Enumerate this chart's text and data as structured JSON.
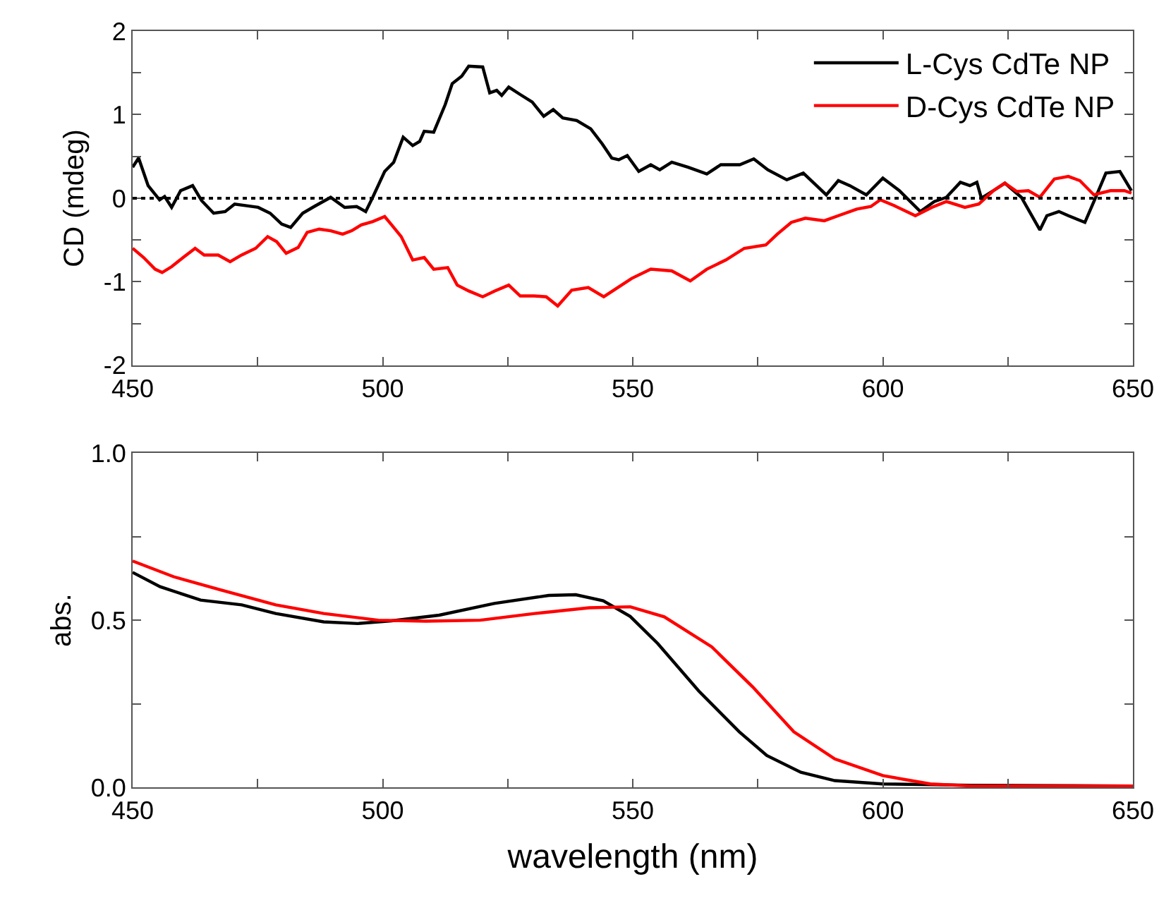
{
  "chart_data": [
    {
      "type": "line",
      "ylabel": "CD (mdeg)",
      "xlim": [
        450,
        650
      ],
      "ylim": [
        -2,
        2
      ],
      "xticks": [
        450,
        {
          "value": 475,
          "label": null
        },
        500,
        {
          "value": 525,
          "label": null
        },
        550,
        {
          "value": 575,
          "label": null
        },
        600,
        {
          "value": 625,
          "label": null
        },
        650
      ],
      "yticks": [
        -2,
        {
          "value": -1.5,
          "label": null
        },
        -1,
        {
          "value": -0.5,
          "label": null
        },
        0,
        {
          "value": 0.5,
          "label": null
        },
        1,
        {
          "value": 1.5,
          "label": null
        },
        2
      ],
      "legend": "top right",
      "marker": "none",
      "line_style": "solid",
      "ref_lines": [
        {
          "axis": "y",
          "value": 0,
          "color": "#000000",
          "line_style": "dotted"
        }
      ],
      "series": [
        {
          "name": "L-Cys CdTe NP",
          "color": "#000000",
          "x": [
            450,
            451.2,
            453.1,
            455.4,
            456.4,
            457.8,
            459.6,
            462,
            463.8,
            466.2,
            468.5,
            470.4,
            472.8,
            475.1,
            477.5,
            479.8,
            481.6,
            484,
            486.3,
            489.6,
            492.4,
            494.8,
            496.6,
            498,
            500.4,
            502.2,
            504.1,
            506,
            507.4,
            508.3,
            510.2,
            512.5,
            513.9,
            515.8,
            517.2,
            520,
            521.4,
            522.8,
            523.8,
            525.2,
            527.5,
            529.9,
            532.2,
            534.1,
            536,
            538.8,
            541.6,
            543.9,
            545.8,
            547.2,
            548.9,
            551.2,
            553.6,
            555.4,
            557.8,
            561.1,
            564.8,
            567.6,
            571.4,
            574.2,
            577,
            580.8,
            584.1,
            588.7,
            591.1,
            593.4,
            596.7,
            600,
            603.3,
            607.5,
            610.3,
            612.7,
            615.5,
            617.4,
            618.8,
            619.7,
            622.1,
            624.4,
            627.7,
            631.4,
            632.8,
            635.2,
            637.1,
            640.4,
            642.2,
            644.6,
            647.4,
            649.7
          ],
          "values": [
            0.37,
            0.48,
            0.15,
            -0.02,
            0.02,
            -0.11,
            0.09,
            0.15,
            -0.03,
            -0.18,
            -0.16,
            -0.07,
            -0.09,
            -0.11,
            -0.18,
            -0.31,
            -0.35,
            -0.18,
            -0.1,
            0.01,
            -0.11,
            -0.1,
            -0.16,
            0.01,
            0.32,
            0.43,
            0.73,
            0.63,
            0.68,
            0.8,
            0.79,
            1.12,
            1.37,
            1.46,
            1.58,
            1.57,
            1.26,
            1.29,
            1.23,
            1.33,
            1.24,
            1.15,
            0.98,
            1.06,
            0.96,
            0.93,
            0.83,
            0.65,
            0.48,
            0.46,
            0.51,
            0.32,
            0.4,
            0.34,
            0.43,
            0.37,
            0.29,
            0.4,
            0.4,
            0.47,
            0.34,
            0.22,
            0.3,
            0.04,
            0.21,
            0.15,
            0.04,
            0.24,
            0.09,
            -0.16,
            -0.04,
            0.01,
            0.19,
            0.15,
            0.19,
            0,
            0.09,
            0.18,
            0.01,
            -0.38,
            -0.21,
            -0.16,
            -0.21,
            -0.29,
            -0.04,
            0.3,
            0.32,
            0.09
          ]
        },
        {
          "name": "D-Cys CdTe NP",
          "color": "#ff0000",
          "x": [
            450,
            452.2,
            454.5,
            455.9,
            457.8,
            460.1,
            462.5,
            464.3,
            467.1,
            469.5,
            471.8,
            474.6,
            477,
            478.8,
            480.7,
            483.1,
            484.9,
            487.3,
            489.6,
            492,
            493.8,
            495.7,
            498,
            500.4,
            501.8,
            503.7,
            506,
            508.3,
            510.2,
            513,
            514.9,
            517.2,
            520,
            522.4,
            525.2,
            527.5,
            530.3,
            532.7,
            535,
            537.8,
            541.1,
            544.2,
            547,
            549.8,
            553.6,
            557.8,
            561.5,
            564.8,
            568.6,
            572.3,
            576.6,
            578.9,
            581.7,
            584.5,
            588.3,
            591.1,
            594.8,
            597.6,
            599.5,
            602.3,
            606.5,
            609.8,
            612.7,
            616.4,
            619.2,
            622.1,
            624.4,
            626.8,
            629.1,
            631.4,
            634.3,
            637.1,
            639.4,
            642.2,
            645.5,
            648.3,
            649.7
          ],
          "values": [
            -0.6,
            -0.71,
            -0.85,
            -0.89,
            -0.82,
            -0.71,
            -0.6,
            -0.68,
            -0.68,
            -0.76,
            -0.68,
            -0.6,
            -0.46,
            -0.52,
            -0.66,
            -0.59,
            -0.41,
            -0.37,
            -0.39,
            -0.43,
            -0.39,
            -0.32,
            -0.28,
            -0.22,
            -0.32,
            -0.46,
            -0.74,
            -0.71,
            -0.85,
            -0.83,
            -1.04,
            -1.11,
            -1.18,
            -1.11,
            -1.04,
            -1.17,
            -1.17,
            -1.18,
            -1.29,
            -1.1,
            -1.07,
            -1.18,
            -1.07,
            -0.96,
            -0.85,
            -0.87,
            -0.99,
            -0.85,
            -0.74,
            -0.6,
            -0.56,
            -0.43,
            -0.29,
            -0.24,
            -0.27,
            -0.21,
            -0.13,
            -0.1,
            -0.02,
            -0.09,
            -0.21,
            -0.11,
            -0.04,
            -0.11,
            -0.07,
            0.09,
            0.18,
            0.08,
            0.09,
            0.01,
            0.23,
            0.26,
            0.21,
            0.04,
            0.09,
            0.09,
            0.06
          ]
        }
      ]
    },
    {
      "type": "line",
      "xlabel": "wavelength (nm)",
      "ylabel": "abs.",
      "xlim": [
        450,
        650
      ],
      "ylim": [
        0,
        1
      ],
      "xticks": [
        450,
        {
          "value": 475,
          "label": null
        },
        500,
        {
          "value": 525,
          "label": null
        },
        550,
        {
          "value": 575,
          "label": null
        },
        600,
        {
          "value": 625,
          "label": null
        },
        650
      ],
      "yticks": [
        {
          "value": 0,
          "label": "0.0"
        },
        {
          "value": 0.25,
          "label": null
        },
        0.5,
        {
          "value": 0.75,
          "label": null
        },
        {
          "value": 1,
          "label": "1.0"
        }
      ],
      "legend": false,
      "marker": "none",
      "line_style": "solid",
      "series": [
        {
          "color": "#000000",
          "x": [
            450,
            455.5,
            463.6,
            471.8,
            478.6,
            488.2,
            495,
            501.8,
            511.3,
            522.3,
            533.2,
            538.6,
            544.1,
            549.5,
            555,
            563.2,
            571.3,
            576.8,
            583.6,
            590.4,
            600,
            617.7,
            650
          ],
          "values": [
            0.643,
            0.6,
            0.56,
            0.546,
            0.52,
            0.495,
            0.49,
            0.498,
            0.515,
            0.55,
            0.574,
            0.576,
            0.558,
            0.511,
            0.43,
            0.288,
            0.166,
            0.095,
            0.045,
            0.02,
            0.01,
            0.006,
            0.004
          ]
        },
        {
          "color": "#ff0000",
          "x": [
            450,
            458.2,
            467.7,
            478.6,
            488.2,
            499.1,
            508.6,
            519.5,
            530.4,
            541.3,
            549.5,
            556.3,
            565.8,
            574,
            582.2,
            590.4,
            600,
            609.5,
            617.7,
            650
          ],
          "values": [
            0.677,
            0.63,
            0.59,
            0.546,
            0.52,
            0.5,
            0.497,
            0.5,
            0.52,
            0.537,
            0.54,
            0.51,
            0.42,
            0.3,
            0.166,
            0.085,
            0.035,
            0.01,
            0.004,
            0.004
          ]
        }
      ]
    }
  ]
}
